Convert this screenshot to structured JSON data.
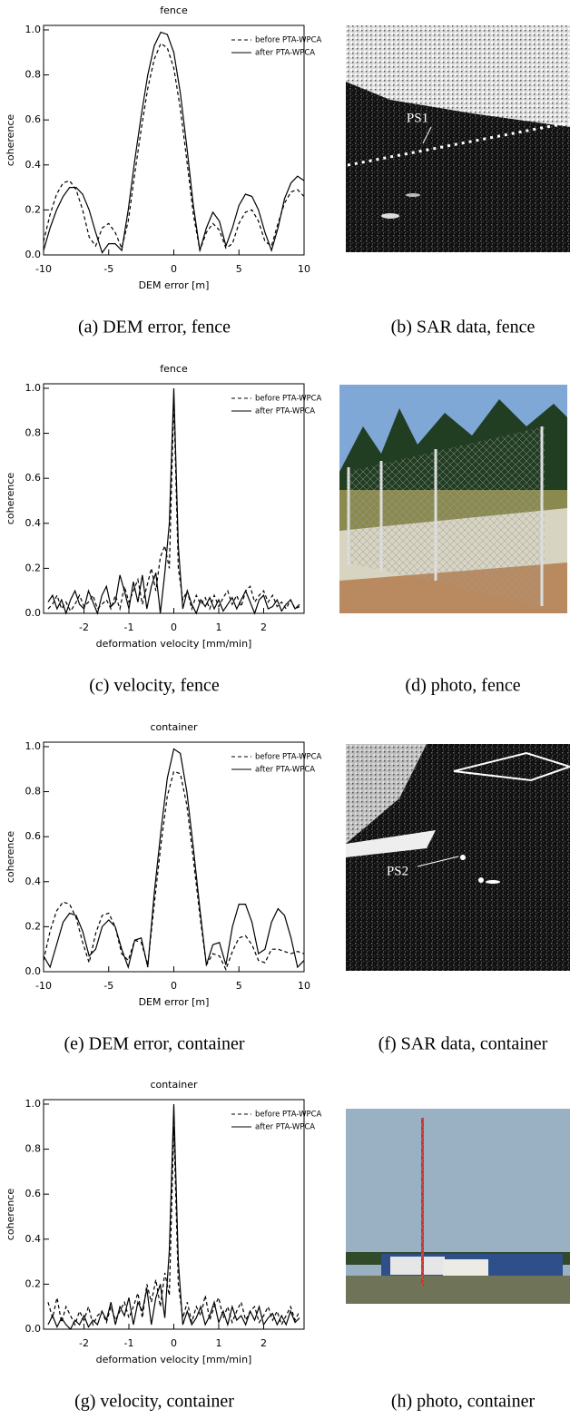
{
  "chart_data": [
    {
      "type": "line",
      "title": "fence",
      "xlabel": "DEM error [m]",
      "ylabel": "coherence",
      "x": [
        -10,
        -9.5,
        -9,
        -8.5,
        -8,
        -7.5,
        -7,
        -6.5,
        -6,
        -5.5,
        -5,
        -4.5,
        -4,
        -3.5,
        -3,
        -2.5,
        -2,
        -1.5,
        -1,
        -0.5,
        0,
        0.5,
        1,
        1.5,
        2,
        2.5,
        3,
        3.5,
        4,
        4.5,
        5,
        5.5,
        6,
        6.5,
        7,
        7.5,
        8,
        8.5,
        9,
        9.5,
        10
      ],
      "series": [
        {
          "name": "before PTA-WPCA",
          "color": "#000000",
          "linestyle": "dashed",
          "values": [
            0.06,
            0.18,
            0.27,
            0.32,
            0.33,
            0.29,
            0.2,
            0.08,
            0.04,
            0.12,
            0.14,
            0.1,
            0.03,
            0.15,
            0.36,
            0.56,
            0.74,
            0.87,
            0.94,
            0.92,
            0.83,
            0.65,
            0.42,
            0.18,
            0.02,
            0.1,
            0.14,
            0.11,
            0.03,
            0.05,
            0.14,
            0.19,
            0.2,
            0.15,
            0.06,
            0.04,
            0.14,
            0.23,
            0.28,
            0.29,
            0.26
          ]
        },
        {
          "name": "after PTA-WPCA",
          "color": "#000000",
          "linestyle": "solid",
          "values": [
            0.02,
            0.12,
            0.2,
            0.26,
            0.3,
            0.3,
            0.27,
            0.2,
            0.1,
            0.01,
            0.05,
            0.05,
            0.02,
            0.2,
            0.42,
            0.62,
            0.8,
            0.93,
            0.99,
            0.98,
            0.9,
            0.72,
            0.48,
            0.22,
            0.02,
            0.12,
            0.19,
            0.15,
            0.04,
            0.12,
            0.22,
            0.27,
            0.26,
            0.2,
            0.1,
            0.02,
            0.12,
            0.25,
            0.32,
            0.35,
            0.33
          ]
        }
      ],
      "xlim": [
        -10,
        10
      ],
      "xticks": [
        -10,
        -5,
        0,
        5,
        10
      ],
      "ylim": [
        0,
        1.02
      ],
      "yticks": [
        {
          "value": 0,
          "label": "0.0"
        },
        {
          "value": 0.2,
          "label": "0.2"
        },
        {
          "value": 0.4,
          "label": "0.4"
        },
        {
          "value": 0.6,
          "label": "0.6"
        },
        {
          "value": 0.8,
          "label": "0.8"
        },
        {
          "value": 1,
          "label": "1.0"
        }
      ],
      "legend": "top-right"
    },
    {
      "type": "line",
      "title": "fence",
      "xlabel": "deformation velocity [mm/min]",
      "ylabel": "coherence",
      "x": [
        -2.8,
        -2.7,
        -2.6,
        -2.5,
        -2.4,
        -2.3,
        -2.2,
        -2.1,
        -2,
        -1.9,
        -1.8,
        -1.7,
        -1.6,
        -1.5,
        -1.4,
        -1.3,
        -1.2,
        -1.1,
        -1,
        -0.9,
        -0.8,
        -0.7,
        -0.6,
        -0.5,
        -0.4,
        -0.3,
        -0.2,
        -0.1,
        0,
        0.1,
        0.2,
        0.3,
        0.4,
        0.5,
        0.6,
        0.7,
        0.8,
        0.9,
        1,
        1.1,
        1.2,
        1.3,
        1.4,
        1.5,
        1.6,
        1.7,
        1.8,
        1.9,
        2,
        2.1,
        2.2,
        2.3,
        2.4,
        2.5,
        2.6,
        2.7,
        2.8
      ],
      "series": [
        {
          "name": "before PTA-WPCA",
          "color": "#000000",
          "linestyle": "dashed",
          "values": [
            0.02,
            0.04,
            0.08,
            0.02,
            0.05,
            0.01,
            0.04,
            0.08,
            0.03,
            0.05,
            0.08,
            0.02,
            0.04,
            0.06,
            0.02,
            0.08,
            0.02,
            0.12,
            0.05,
            0.1,
            0.15,
            0.04,
            0.12,
            0.2,
            0.1,
            0.25,
            0.3,
            0.2,
            0.95,
            0.2,
            0.06,
            0.1,
            0.02,
            0.08,
            0.04,
            0.07,
            0.02,
            0.08,
            0.03,
            0.07,
            0.1,
            0.04,
            0.08,
            0.03,
            0.1,
            0.12,
            0.05,
            0.08,
            0.1,
            0.05,
            0.08,
            0.03,
            0.05,
            0.02,
            0.06,
            0.02,
            0.03
          ]
        },
        {
          "name": "after PTA-WPCA",
          "color": "#000000",
          "linestyle": "solid",
          "values": [
            0.05,
            0.08,
            0.02,
            0.06,
            0,
            0.06,
            0.1,
            0.04,
            0.02,
            0.1,
            0.05,
            0,
            0.08,
            0.12,
            0.03,
            0.05,
            0.17,
            0.1,
            0.02,
            0.14,
            0.05,
            0.17,
            0.02,
            0.12,
            0.18,
            0,
            0.18,
            0.4,
            1,
            0.3,
            0.02,
            0.1,
            0.04,
            0,
            0.06,
            0.03,
            0.07,
            0.02,
            0.06,
            0.01,
            0.04,
            0.07,
            0.02,
            0.06,
            0.1,
            0.05,
            0,
            0.06,
            0.08,
            0.02,
            0.03,
            0.06,
            0.01,
            0.04,
            0.06,
            0.02,
            0.04
          ]
        }
      ],
      "xlim": [
        -2.9,
        2.9
      ],
      "xticks": [
        -2,
        -1,
        0,
        1,
        2
      ],
      "ylim": [
        0,
        1.02
      ],
      "yticks": [
        {
          "value": 0,
          "label": "0.0"
        },
        {
          "value": 0.2,
          "label": "0.2"
        },
        {
          "value": 0.4,
          "label": "0.4"
        },
        {
          "value": 0.6,
          "label": "0.6"
        },
        {
          "value": 0.8,
          "label": "0.8"
        },
        {
          "value": 1,
          "label": "1.0"
        }
      ],
      "legend": "top-right"
    },
    {
      "type": "line",
      "title": "container",
      "xlabel": "DEM error [m]",
      "ylabel": "coherence",
      "x": [
        -10,
        -9.5,
        -9,
        -8.5,
        -8,
        -7.5,
        -7,
        -6.5,
        -6,
        -5.5,
        -5,
        -4.5,
        -4,
        -3.5,
        -3,
        -2.5,
        -2,
        -1.5,
        -1,
        -0.5,
        0,
        0.5,
        1,
        1.5,
        2,
        2.5,
        3,
        3.5,
        4,
        4.5,
        5,
        5.5,
        6,
        6.5,
        7,
        7.5,
        8,
        8.5,
        9,
        9.5,
        10
      ],
      "series": [
        {
          "name": "before PTA-WPCA",
          "color": "#000000",
          "linestyle": "dashed",
          "values": [
            0.05,
            0.18,
            0.27,
            0.31,
            0.3,
            0.24,
            0.13,
            0.04,
            0.17,
            0.25,
            0.26,
            0.2,
            0.08,
            0.05,
            0.14,
            0.13,
            0.03,
            0.3,
            0.56,
            0.78,
            0.89,
            0.88,
            0.74,
            0.5,
            0.25,
            0.03,
            0.08,
            0.07,
            0.01,
            0.09,
            0.15,
            0.16,
            0.12,
            0.05,
            0.04,
            0.1,
            0.1,
            0.09,
            0.08,
            0.09,
            0.08
          ]
        },
        {
          "name": "after PTA-WPCA",
          "color": "#000000",
          "linestyle": "solid",
          "values": [
            0.07,
            0.02,
            0.12,
            0.22,
            0.26,
            0.25,
            0.18,
            0.07,
            0.1,
            0.2,
            0.23,
            0.2,
            0.1,
            0.02,
            0.14,
            0.15,
            0.02,
            0.35,
            0.62,
            0.86,
            0.99,
            0.97,
            0.8,
            0.55,
            0.28,
            0.03,
            0.12,
            0.13,
            0.03,
            0.2,
            0.3,
            0.3,
            0.22,
            0.08,
            0.1,
            0.22,
            0.28,
            0.25,
            0.15,
            0.02,
            0.05
          ]
        }
      ],
      "xlim": [
        -10,
        10
      ],
      "xticks": [
        -10,
        -5,
        0,
        5,
        10
      ],
      "ylim": [
        0,
        1.02
      ],
      "yticks": [
        {
          "value": 0,
          "label": "0.0"
        },
        {
          "value": 0.2,
          "label": "0.2"
        },
        {
          "value": 0.4,
          "label": "0.4"
        },
        {
          "value": 0.6,
          "label": "0.6"
        },
        {
          "value": 0.8,
          "label": "0.8"
        },
        {
          "value": 1,
          "label": "1.0"
        }
      ],
      "legend": "top-right"
    },
    {
      "type": "line",
      "title": "container",
      "xlabel": "deformation velocity [mm/min]",
      "ylabel": "coherence",
      "x": [
        -2.8,
        -2.7,
        -2.6,
        -2.5,
        -2.4,
        -2.3,
        -2.2,
        -2.1,
        -2,
        -1.9,
        -1.8,
        -1.7,
        -1.6,
        -1.5,
        -1.4,
        -1.3,
        -1.2,
        -1.1,
        -1,
        -0.9,
        -0.8,
        -0.7,
        -0.6,
        -0.5,
        -0.4,
        -0.3,
        -0.2,
        -0.1,
        0,
        0.1,
        0.2,
        0.3,
        0.4,
        0.5,
        0.6,
        0.7,
        0.8,
        0.9,
        1,
        1.1,
        1.2,
        1.3,
        1.4,
        1.5,
        1.6,
        1.7,
        1.8,
        1.9,
        2,
        2.1,
        2.2,
        2.3,
        2.4,
        2.5,
        2.6,
        2.7,
        2.8
      ],
      "series": [
        {
          "name": "before PTA-WPCA",
          "color": "#000000",
          "linestyle": "dashed",
          "values": [
            0.12,
            0.05,
            0.14,
            0.03,
            0.1,
            0.06,
            0.02,
            0.08,
            0.04,
            0.1,
            0.02,
            0.06,
            0.08,
            0.03,
            0.1,
            0.04,
            0.08,
            0.12,
            0.05,
            0.1,
            0.16,
            0.05,
            0.2,
            0.12,
            0.22,
            0.1,
            0.25,
            0.15,
            0.9,
            0.2,
            0.05,
            0.12,
            0.03,
            0.1,
            0.06,
            0.15,
            0.04,
            0.1,
            0.14,
            0.05,
            0.1,
            0.03,
            0.08,
            0.12,
            0.04,
            0.08,
            0.1,
            0.03,
            0.06,
            0.1,
            0.04,
            0.08,
            0.02,
            0.06,
            0.1,
            0.04,
            0.08
          ]
        },
        {
          "name": "after PTA-WPCA",
          "color": "#000000",
          "linestyle": "solid",
          "values": [
            0.02,
            0.06,
            0.01,
            0.05,
            0.02,
            0,
            0.04,
            0.02,
            0.06,
            0.01,
            0.04,
            0.02,
            0.08,
            0.04,
            0.12,
            0.02,
            0.1,
            0.06,
            0.14,
            0.02,
            0.12,
            0.08,
            0.18,
            0.02,
            0.14,
            0.2,
            0.05,
            0.35,
            1,
            0.3,
            0.02,
            0.08,
            0.02,
            0.05,
            0.1,
            0.02,
            0.06,
            0.12,
            0.03,
            0.08,
            0.02,
            0.1,
            0.04,
            0.06,
            0.02,
            0.08,
            0.04,
            0.1,
            0.02,
            0.05,
            0.07,
            0.02,
            0.06,
            0.02,
            0.08,
            0.03,
            0.05
          ]
        }
      ],
      "xlim": [
        -2.9,
        2.9
      ],
      "xticks": [
        -2,
        -1,
        0,
        1,
        2
      ],
      "ylim": [
        0,
        1.02
      ],
      "yticks": [
        {
          "value": 0,
          "label": "0.0"
        },
        {
          "value": 0.2,
          "label": "0.2"
        },
        {
          "value": 0.4,
          "label": "0.4"
        },
        {
          "value": 0.6,
          "label": "0.6"
        },
        {
          "value": 0.8,
          "label": "0.8"
        },
        {
          "value": 1,
          "label": "1.0"
        }
      ],
      "legend": "top-right"
    }
  ],
  "captions": [
    "(a) DEM error, fence",
    "(b) SAR data, fence",
    "(c) velocity, fence",
    "(d) photo, fence",
    "(e) DEM error, container",
    "(f) SAR data, container",
    "(g) velocity, container",
    "(h) photo, container"
  ],
  "image_labels": [
    "PS1",
    "PS2"
  ]
}
